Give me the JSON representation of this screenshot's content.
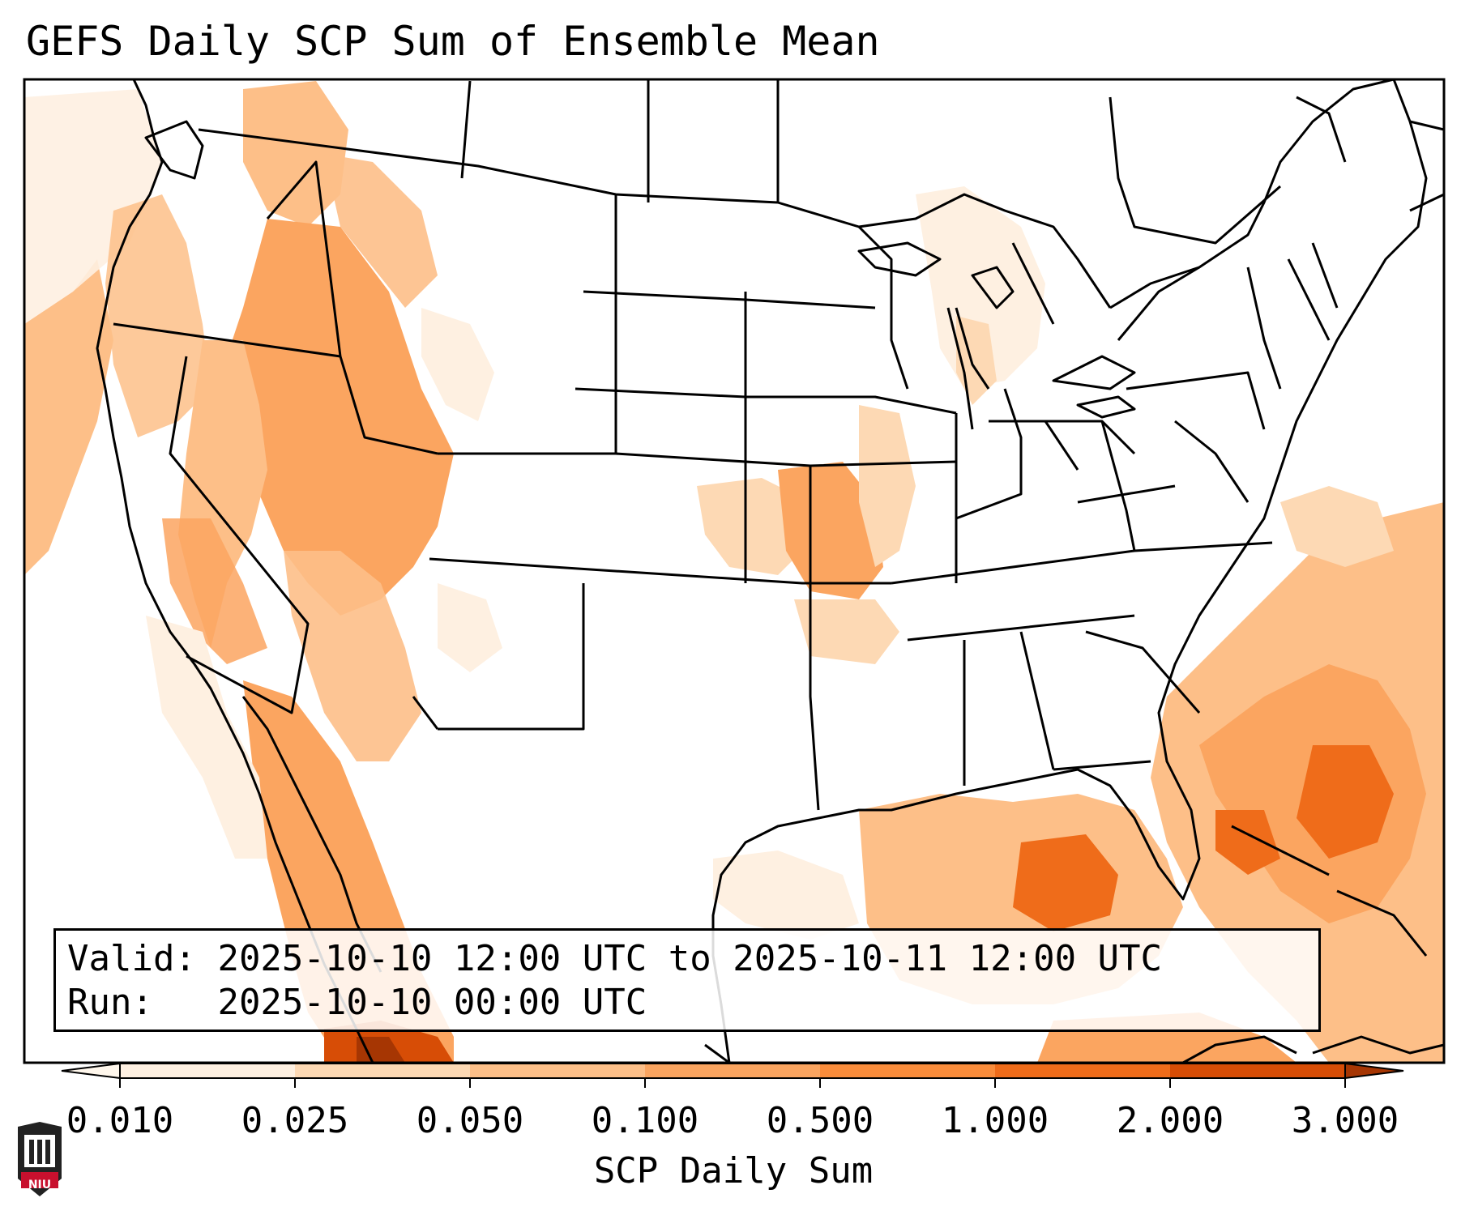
{
  "title": "GEFS Daily SCP Sum of Ensemble Mean",
  "valid_box": {
    "valid_label": "Valid:",
    "valid_value": "2025-10-10 12:00 UTC to 2025-10-11 12:00 UTC",
    "run_label": "Run:",
    "run_value": "2025-10-10 00:00 UTC"
  },
  "colorbar": {
    "label": "SCP Daily Sum",
    "ticks": [
      "0.010",
      "0.025",
      "0.050",
      "0.100",
      "0.500",
      "1.000",
      "2.000",
      "3.000"
    ],
    "colors": [
      "#fef0e1",
      "#fdd9b4",
      "#fdbf88",
      "#fba560",
      "#f98c3b",
      "#ef6c1a",
      "#d74d06",
      "#a63603"
    ],
    "extend": "both"
  },
  "logo": {
    "text": "NIU"
  }
}
